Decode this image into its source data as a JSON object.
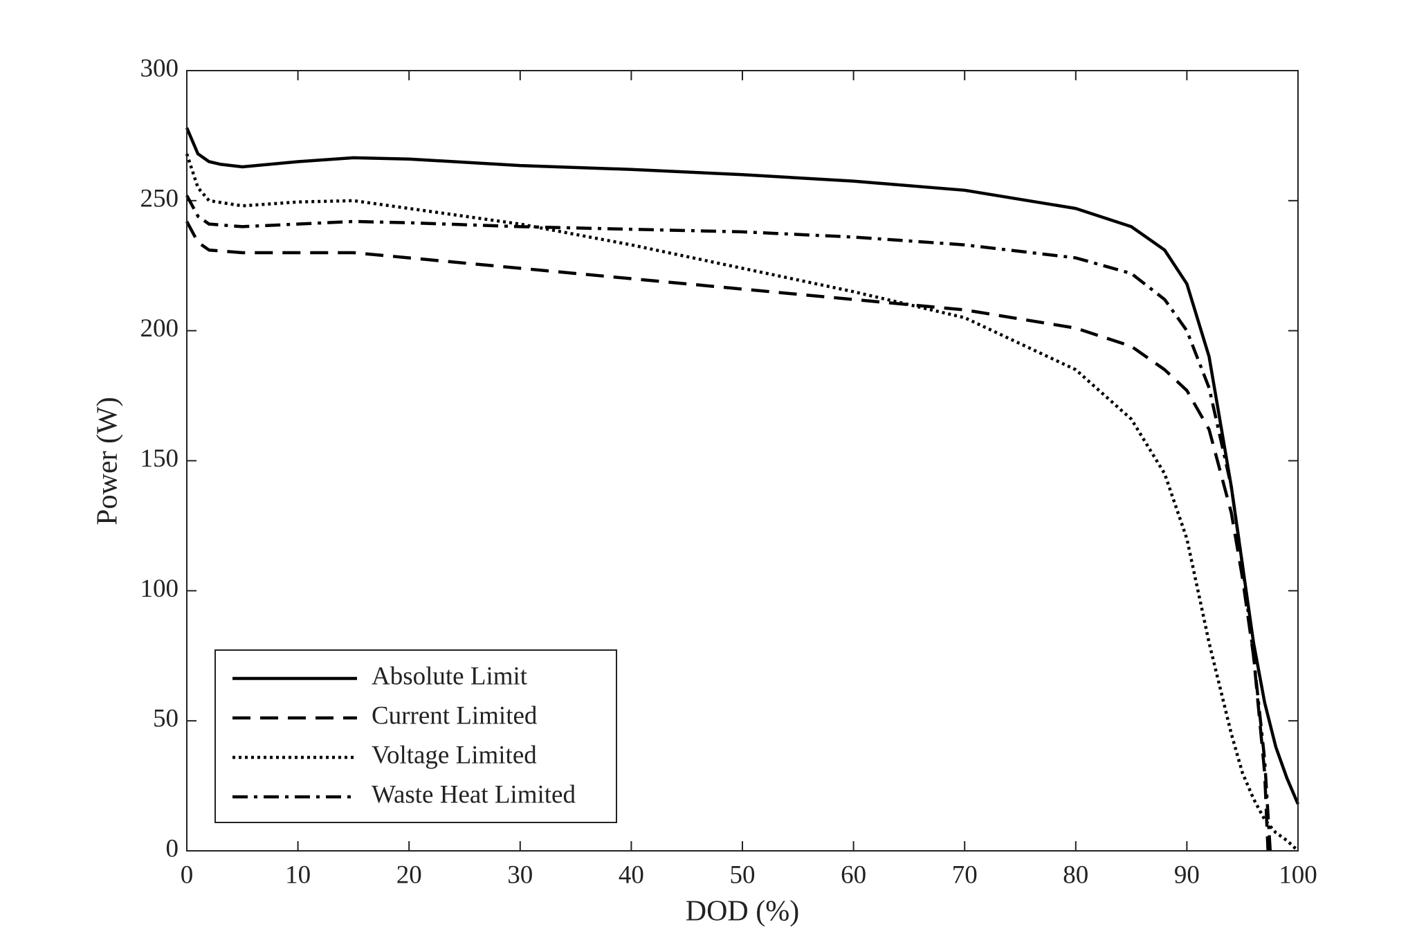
{
  "chart_data": {
    "type": "line",
    "xlabel": "DOD (%)",
    "ylabel": "Power (W)",
    "xlim": [
      0,
      100
    ],
    "ylim": [
      0,
      300
    ],
    "xticks": [
      0,
      10,
      20,
      30,
      40,
      50,
      60,
      70,
      80,
      90,
      100
    ],
    "yticks": [
      0,
      50,
      100,
      150,
      200,
      250,
      300
    ],
    "grid": false,
    "legend": "lower left",
    "series": [
      {
        "name": "Absolute Limit",
        "color": "#000000",
        "dash": "solid",
        "x": [
          0,
          1,
          2,
          3,
          5,
          10,
          15,
          20,
          30,
          40,
          50,
          60,
          70,
          80,
          85,
          88,
          90,
          92,
          94,
          95,
          96,
          97,
          98,
          99,
          100
        ],
        "values": [
          278,
          268,
          265,
          264,
          263,
          265,
          266.5,
          266,
          263.5,
          262,
          260,
          257.5,
          254,
          247,
          240,
          231,
          218,
          190,
          140,
          110,
          80,
          57,
          40,
          28,
          18
        ]
      },
      {
        "name": "Current Limited",
        "color": "#000000",
        "dash": "dashed",
        "x": [
          0,
          1,
          2,
          5,
          10,
          15,
          20,
          30,
          40,
          50,
          60,
          70,
          80,
          85,
          88,
          90,
          92,
          94,
          95,
          96,
          97,
          97.3
        ],
        "values": [
          242,
          234,
          231,
          230,
          230,
          230,
          228,
          224,
          220,
          216,
          212,
          208,
          201,
          194,
          185,
          177,
          162,
          130,
          105,
          75,
          30,
          0
        ]
      },
      {
        "name": "Voltage Limited",
        "color": "#000000",
        "dash": "dotted",
        "x": [
          0,
          1,
          2,
          5,
          10,
          15,
          20,
          30,
          40,
          50,
          60,
          70,
          80,
          85,
          88,
          90,
          92,
          94,
          95,
          96,
          97,
          98,
          99,
          100
        ],
        "values": [
          268,
          255,
          250,
          248,
          249.5,
          250,
          247,
          241,
          233,
          224,
          215,
          205,
          185,
          166,
          145,
          120,
          80,
          45,
          30,
          20,
          12,
          7,
          4,
          0
        ]
      },
      {
        "name": "Waste Heat Limited",
        "color": "#000000",
        "dash": "dashdot",
        "x": [
          0,
          1,
          2,
          5,
          10,
          15,
          20,
          30,
          40,
          50,
          60,
          70,
          80,
          85,
          88,
          90,
          92,
          94,
          95,
          96,
          97,
          97.5
        ],
        "values": [
          252,
          244,
          241,
          240,
          241,
          242,
          241.5,
          240,
          239,
          238,
          236,
          233,
          228,
          222,
          212,
          200,
          178,
          140,
          110,
          75,
          35,
          0
        ]
      }
    ]
  }
}
